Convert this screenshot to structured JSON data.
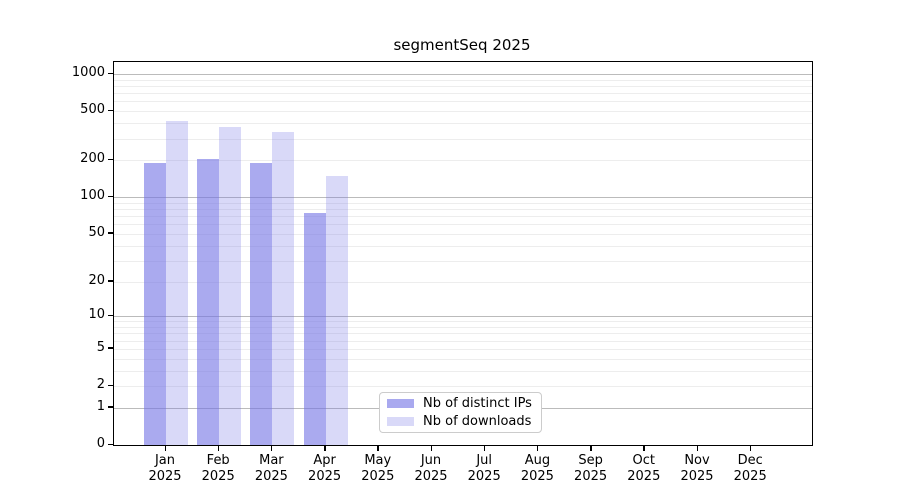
{
  "title": "segmentSeq 2025",
  "chart_data": {
    "type": "bar",
    "title": "segmentSeq 2025",
    "scale": "log1p",
    "grid": "on",
    "categories": [
      "Jan",
      "Feb",
      "Mar",
      "Apr",
      "May",
      "Jun",
      "Jul",
      "Aug",
      "Sep",
      "Oct",
      "Nov",
      "Dec"
    ],
    "year_label": "2025",
    "series": [
      {
        "name": "Nb of distinct IPs",
        "color": "#a9a9ef",
        "fill": "rgba(113,113,228,0.60)",
        "values": [
          190,
          205,
          190,
          74,
          0,
          0,
          0,
          0,
          0,
          0,
          0,
          0
        ]
      },
      {
        "name": "Nb of downloads",
        "color": "#d9d9f8",
        "fill": "rgba(113,113,228,0.27)",
        "values": [
          420,
          375,
          340,
          150,
          0,
          0,
          0,
          0,
          0,
          0,
          0,
          0
        ]
      }
    ],
    "yticks": [
      0,
      1,
      2,
      5,
      10,
      20,
      50,
      100,
      200,
      500,
      1000
    ],
    "ylim": [
      0,
      1250
    ],
    "major_grid_values": [
      1,
      10,
      100,
      1000
    ],
    "minor_grid_values": [
      2,
      3,
      4,
      5,
      6,
      7,
      8,
      9,
      20,
      30,
      40,
      50,
      60,
      70,
      80,
      90,
      200,
      300,
      400,
      500,
      600,
      700,
      800,
      900
    ],
    "major_grid_color": "#bbbbbb",
    "minor_grid_color": "#ededed",
    "legend_position": "inside-bottom-left-of-center"
  }
}
